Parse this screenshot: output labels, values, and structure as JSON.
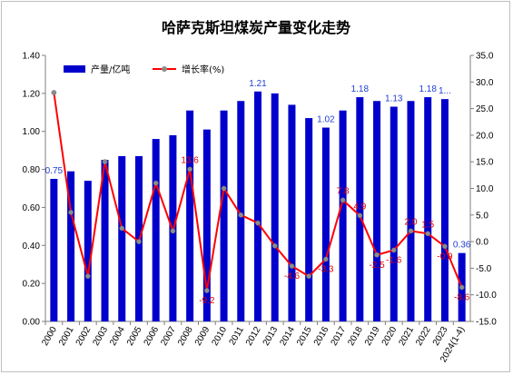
{
  "chart_data": {
    "type": "bar",
    "title": "哈萨克斯坦煤炭产量变化走势",
    "categories": [
      "2000",
      "2001",
      "2002",
      "2003",
      "2004",
      "2005",
      "2006",
      "2007",
      "2008",
      "2009",
      "2010",
      "2011",
      "2012",
      "2013",
      "2014",
      "2015",
      "2016",
      "2017",
      "2018",
      "2019",
      "2020",
      "2021",
      "2022",
      "2023",
      "2024(1-4)"
    ],
    "series": [
      {
        "name": "产量/亿吨",
        "type": "bar",
        "axis": "left",
        "color": "#0000cc",
        "values": [
          0.75,
          0.79,
          0.74,
          0.85,
          0.87,
          0.87,
          0.96,
          0.98,
          1.11,
          1.01,
          1.11,
          1.16,
          1.21,
          1.2,
          1.14,
          1.07,
          1.02,
          1.11,
          1.18,
          1.16,
          1.13,
          1.16,
          1.18,
          1.17,
          0.36
        ]
      },
      {
        "name": "增长率(%)",
        "type": "line",
        "axis": "right",
        "color": "#ff0000",
        "values": [
          28.0,
          5.5,
          -6.5,
          15.0,
          2.5,
          0.0,
          11.0,
          2.0,
          13.6,
          -9.2,
          10.0,
          5.0,
          3.5,
          -0.8,
          -4.6,
          -6.5,
          -3.3,
          7.8,
          4.9,
          -2.5,
          -1.6,
          2.0,
          1.5,
          -0.9,
          -8.6
        ]
      }
    ],
    "bar_labels": [
      {
        "index": 0,
        "text": "0.75"
      },
      {
        "index": 12,
        "text": "1.21"
      },
      {
        "index": 16,
        "text": "1.02"
      },
      {
        "index": 18,
        "text": "1.18"
      },
      {
        "index": 20,
        "text": "1.13"
      },
      {
        "index": 22,
        "text": "1.18"
      },
      {
        "index": 23,
        "text": "1..."
      },
      {
        "index": 24,
        "text": "0.36"
      }
    ],
    "line_labels": [
      {
        "index": 8,
        "text": "13.6"
      },
      {
        "index": 9,
        "text": "-9.2"
      },
      {
        "index": 14,
        "text": "-4.6"
      },
      {
        "index": 16,
        "text": "-3.3"
      },
      {
        "index": 17,
        "text": "7.8"
      },
      {
        "index": 18,
        "text": "4.9"
      },
      {
        "index": 19,
        "text": "-2.5"
      },
      {
        "index": 20,
        "text": "-1.6"
      },
      {
        "index": 21,
        "text": "2.0"
      },
      {
        "index": 22,
        "text": "1.5"
      },
      {
        "index": 23,
        "text": "-0.9"
      },
      {
        "index": 24,
        "text": "-8.6"
      }
    ],
    "y_left": {
      "min": 0,
      "max": 1.4,
      "step": 0.2,
      "ticks": [
        "0.00",
        "0.20",
        "0.40",
        "0.60",
        "0.80",
        "1.00",
        "1.20",
        "1.40"
      ]
    },
    "y_right": {
      "min": -15,
      "max": 35,
      "step": 5,
      "ticks": [
        "-15.0",
        "-10.0",
        "-5.0",
        "0.0",
        "5.0",
        "10.0",
        "15.0",
        "20.0",
        "25.0",
        "30.0",
        "35.0"
      ]
    },
    "legend_position": "top-left",
    "grid": false
  }
}
